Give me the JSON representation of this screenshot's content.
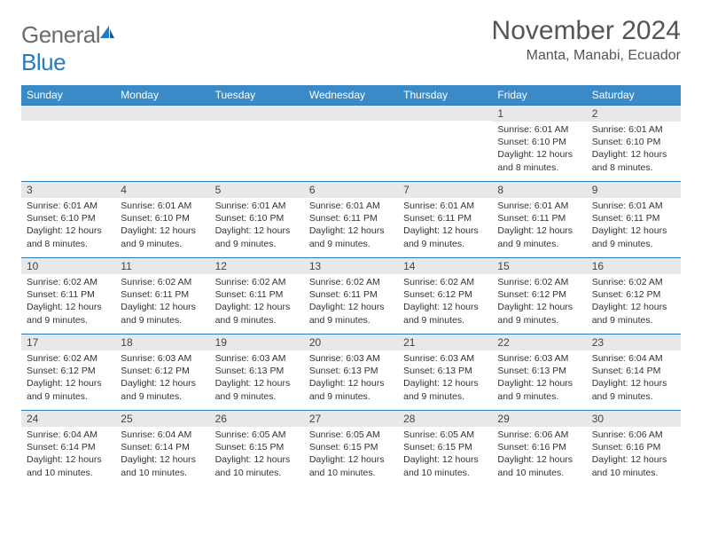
{
  "logo": {
    "general": "General",
    "blue": "Blue"
  },
  "title": "November 2024",
  "location": "Manta, Manabi, Ecuador",
  "colors": {
    "header_bg": "#3a8ac8",
    "header_border": "#2a7ab9",
    "daynum_bg": "#e8e8e8",
    "text": "#333333",
    "title_text": "#555555"
  },
  "weekdays": [
    "Sunday",
    "Monday",
    "Tuesday",
    "Wednesday",
    "Thursday",
    "Friday",
    "Saturday"
  ],
  "days": {
    "1": {
      "sunrise": "6:01 AM",
      "sunset": "6:10 PM",
      "daylight": "12 hours and 8 minutes."
    },
    "2": {
      "sunrise": "6:01 AM",
      "sunset": "6:10 PM",
      "daylight": "12 hours and 8 minutes."
    },
    "3": {
      "sunrise": "6:01 AM",
      "sunset": "6:10 PM",
      "daylight": "12 hours and 8 minutes."
    },
    "4": {
      "sunrise": "6:01 AM",
      "sunset": "6:10 PM",
      "daylight": "12 hours and 9 minutes."
    },
    "5": {
      "sunrise": "6:01 AM",
      "sunset": "6:10 PM",
      "daylight": "12 hours and 9 minutes."
    },
    "6": {
      "sunrise": "6:01 AM",
      "sunset": "6:11 PM",
      "daylight": "12 hours and 9 minutes."
    },
    "7": {
      "sunrise": "6:01 AM",
      "sunset": "6:11 PM",
      "daylight": "12 hours and 9 minutes."
    },
    "8": {
      "sunrise": "6:01 AM",
      "sunset": "6:11 PM",
      "daylight": "12 hours and 9 minutes."
    },
    "9": {
      "sunrise": "6:01 AM",
      "sunset": "6:11 PM",
      "daylight": "12 hours and 9 minutes."
    },
    "10": {
      "sunrise": "6:02 AM",
      "sunset": "6:11 PM",
      "daylight": "12 hours and 9 minutes."
    },
    "11": {
      "sunrise": "6:02 AM",
      "sunset": "6:11 PM",
      "daylight": "12 hours and 9 minutes."
    },
    "12": {
      "sunrise": "6:02 AM",
      "sunset": "6:11 PM",
      "daylight": "12 hours and 9 minutes."
    },
    "13": {
      "sunrise": "6:02 AM",
      "sunset": "6:11 PM",
      "daylight": "12 hours and 9 minutes."
    },
    "14": {
      "sunrise": "6:02 AM",
      "sunset": "6:12 PM",
      "daylight": "12 hours and 9 minutes."
    },
    "15": {
      "sunrise": "6:02 AM",
      "sunset": "6:12 PM",
      "daylight": "12 hours and 9 minutes."
    },
    "16": {
      "sunrise": "6:02 AM",
      "sunset": "6:12 PM",
      "daylight": "12 hours and 9 minutes."
    },
    "17": {
      "sunrise": "6:02 AM",
      "sunset": "6:12 PM",
      "daylight": "12 hours and 9 minutes."
    },
    "18": {
      "sunrise": "6:03 AM",
      "sunset": "6:12 PM",
      "daylight": "12 hours and 9 minutes."
    },
    "19": {
      "sunrise": "6:03 AM",
      "sunset": "6:13 PM",
      "daylight": "12 hours and 9 minutes."
    },
    "20": {
      "sunrise": "6:03 AM",
      "sunset": "6:13 PM",
      "daylight": "12 hours and 9 minutes."
    },
    "21": {
      "sunrise": "6:03 AM",
      "sunset": "6:13 PM",
      "daylight": "12 hours and 9 minutes."
    },
    "22": {
      "sunrise": "6:03 AM",
      "sunset": "6:13 PM",
      "daylight": "12 hours and 9 minutes."
    },
    "23": {
      "sunrise": "6:04 AM",
      "sunset": "6:14 PM",
      "daylight": "12 hours and 9 minutes."
    },
    "24": {
      "sunrise": "6:04 AM",
      "sunset": "6:14 PM",
      "daylight": "12 hours and 10 minutes."
    },
    "25": {
      "sunrise": "6:04 AM",
      "sunset": "6:14 PM",
      "daylight": "12 hours and 10 minutes."
    },
    "26": {
      "sunrise": "6:05 AM",
      "sunset": "6:15 PM",
      "daylight": "12 hours and 10 minutes."
    },
    "27": {
      "sunrise": "6:05 AM",
      "sunset": "6:15 PM",
      "daylight": "12 hours and 10 minutes."
    },
    "28": {
      "sunrise": "6:05 AM",
      "sunset": "6:15 PM",
      "daylight": "12 hours and 10 minutes."
    },
    "29": {
      "sunrise": "6:06 AM",
      "sunset": "6:16 PM",
      "daylight": "12 hours and 10 minutes."
    },
    "30": {
      "sunrise": "6:06 AM",
      "sunset": "6:16 PM",
      "daylight": "12 hours and 10 minutes."
    }
  },
  "labels": {
    "sunrise": "Sunrise: ",
    "sunset": "Sunset: ",
    "daylight": "Daylight: "
  },
  "grid": [
    [
      "",
      "",
      "",
      "",
      "",
      "1",
      "2"
    ],
    [
      "3",
      "4",
      "5",
      "6",
      "7",
      "8",
      "9"
    ],
    [
      "10",
      "11",
      "12",
      "13",
      "14",
      "15",
      "16"
    ],
    [
      "17",
      "18",
      "19",
      "20",
      "21",
      "22",
      "23"
    ],
    [
      "24",
      "25",
      "26",
      "27",
      "28",
      "29",
      "30"
    ]
  ]
}
